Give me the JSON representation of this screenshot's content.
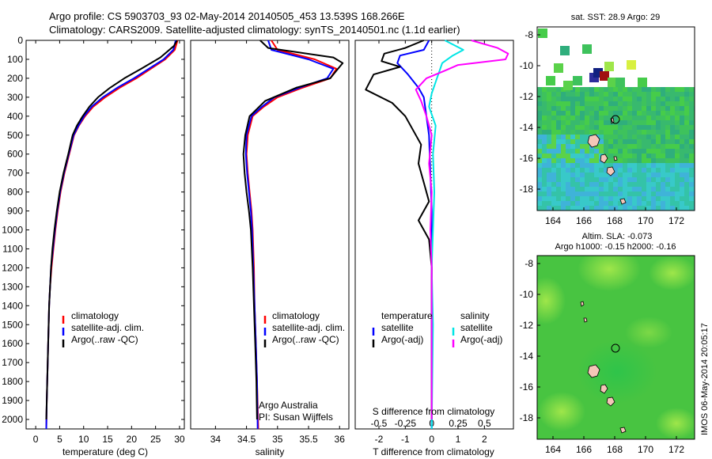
{
  "header": {
    "line1": "Argo profile: CS 5903703_93 02-May-2014 20140505_453 13.539S 168.266E",
    "line2": "Climatology: CARS2009. Satellite-adjusted climatology: synTS_20140501.nc (1.1d earlier)"
  },
  "colors": {
    "red": "#ff0000",
    "blue": "#0000ff",
    "black": "#000000",
    "cyan": "#00e5e5",
    "magenta": "#ff00ff"
  },
  "chart_data": [
    {
      "type": "line",
      "id": "temperature",
      "xlabel": "temperature (deg C)",
      "ylabel": "",
      "xlim": [
        -2,
        31
      ],
      "ylim": [
        2050,
        0
      ],
      "xticks": [
        0,
        5,
        10,
        15,
        20,
        25,
        30
      ],
      "yticks": [
        0,
        100,
        200,
        300,
        400,
        500,
        600,
        700,
        800,
        900,
        1000,
        1100,
        1200,
        1300,
        1400,
        1500,
        1600,
        1700,
        1800,
        1900,
        2000
      ],
      "legend": [
        "climatology",
        "satellite-adj. clim.",
        "Argo(..raw -QC)"
      ],
      "series": [
        {
          "name": "climatology",
          "color": "red",
          "points": [
            [
              29.6,
              0
            ],
            [
              29.0,
              50
            ],
            [
              27.0,
              100
            ],
            [
              24.0,
              150
            ],
            [
              21.0,
              200
            ],
            [
              17.5,
              250
            ],
            [
              14.5,
              300
            ],
            [
              12.0,
              350
            ],
            [
              10.3,
              400
            ],
            [
              9.0,
              450
            ],
            [
              8.0,
              500
            ],
            [
              7.0,
              600
            ],
            [
              6.0,
              700
            ],
            [
              5.2,
              800
            ],
            [
              4.6,
              900
            ],
            [
              4.1,
              1000
            ],
            [
              3.7,
              1100
            ],
            [
              3.3,
              1200
            ],
            [
              3.0,
              1300
            ],
            [
              2.8,
              1400
            ],
            [
              2.7,
              1500
            ],
            [
              2.6,
              1600
            ],
            [
              2.5,
              1700
            ],
            [
              2.4,
              1800
            ],
            [
              2.3,
              1900
            ],
            [
              2.2,
              2050
            ]
          ]
        },
        {
          "name": "satellite-adj. clim.",
          "color": "blue",
          "points": [
            [
              29.2,
              0
            ],
            [
              28.7,
              50
            ],
            [
              26.7,
              100
            ],
            [
              23.6,
              150
            ],
            [
              20.5,
              200
            ],
            [
              17.0,
              250
            ],
            [
              14.0,
              300
            ],
            [
              11.7,
              350
            ],
            [
              10.1,
              400
            ],
            [
              8.9,
              450
            ],
            [
              7.9,
              500
            ],
            [
              6.9,
              600
            ],
            [
              5.9,
              700
            ],
            [
              5.1,
              800
            ],
            [
              4.5,
              900
            ],
            [
              4.0,
              1000
            ],
            [
              3.6,
              1100
            ],
            [
              3.2,
              1200
            ],
            [
              3.0,
              1300
            ],
            [
              2.8,
              1400
            ],
            [
              2.7,
              1500
            ],
            [
              2.6,
              1600
            ],
            [
              2.5,
              1700
            ],
            [
              2.4,
              1800
            ],
            [
              2.3,
              1900
            ],
            [
              2.2,
              2050
            ]
          ]
        },
        {
          "name": "Argo(..raw -QC)",
          "color": "black",
          "points": [
            [
              29.5,
              0
            ],
            [
              28.8,
              30
            ],
            [
              26.0,
              90
            ],
            [
              22.0,
              150
            ],
            [
              18.5,
              200
            ],
            [
              15.5,
              250
            ],
            [
              13.0,
              300
            ],
            [
              11.2,
              350
            ],
            [
              9.8,
              400
            ],
            [
              8.6,
              450
            ],
            [
              7.7,
              500
            ],
            [
              6.8,
              600
            ],
            [
              5.8,
              700
            ],
            [
              5.0,
              800
            ],
            [
              4.4,
              900
            ],
            [
              3.9,
              1000
            ],
            [
              3.5,
              1100
            ],
            [
              3.2,
              1200
            ],
            [
              3.0,
              1300
            ],
            [
              2.8,
              1400
            ],
            [
              2.7,
              1500
            ],
            [
              2.6,
              1600
            ],
            [
              2.5,
              1700
            ],
            [
              2.4,
              1800
            ],
            [
              2.3,
              1900
            ],
            [
              2.2,
              2000
            ]
          ]
        }
      ]
    },
    {
      "type": "line",
      "id": "salinity",
      "xlabel": "salinity",
      "ylabel": "",
      "xlim": [
        33.6,
        36.15
      ],
      "ylim": [
        2050,
        0
      ],
      "xticks": [
        34,
        34.5,
        35,
        35.5,
        36
      ],
      "legend": [
        "climatology",
        "satellite-adj. clim.",
        "Argo(..raw -QC)"
      ],
      "annotation": {
        "line1": "Argo Australia",
        "line2": "PI: Susan Wijffels"
      },
      "series": [
        {
          "name": "climatology",
          "color": "red",
          "points": [
            [
              34.9,
              0
            ],
            [
              35.0,
              50
            ],
            [
              35.6,
              100
            ],
            [
              35.95,
              150
            ],
            [
              35.85,
              200
            ],
            [
              35.4,
              250
            ],
            [
              35.0,
              300
            ],
            [
              34.78,
              350
            ],
            [
              34.6,
              400
            ],
            [
              34.52,
              500
            ],
            [
              34.5,
              600
            ],
            [
              34.52,
              700
            ],
            [
              34.55,
              800
            ],
            [
              34.58,
              900
            ],
            [
              34.6,
              1000
            ],
            [
              34.62,
              1200
            ],
            [
              34.63,
              1400
            ],
            [
              34.65,
              1600
            ],
            [
              34.67,
              1800
            ],
            [
              34.69,
              2050
            ]
          ]
        },
        {
          "name": "satellite-adj. clim.",
          "color": "blue",
          "points": [
            [
              34.85,
              0
            ],
            [
              34.9,
              50
            ],
            [
              35.5,
              100
            ],
            [
              35.9,
              150
            ],
            [
              35.8,
              200
            ],
            [
              35.35,
              250
            ],
            [
              34.95,
              300
            ],
            [
              34.75,
              350
            ],
            [
              34.58,
              400
            ],
            [
              34.5,
              500
            ],
            [
              34.49,
              600
            ],
            [
              34.51,
              700
            ],
            [
              34.54,
              800
            ],
            [
              34.57,
              900
            ],
            [
              34.59,
              1000
            ],
            [
              34.61,
              1200
            ],
            [
              34.63,
              1400
            ],
            [
              34.65,
              1600
            ],
            [
              34.67,
              1800
            ],
            [
              34.68,
              2050
            ]
          ]
        },
        {
          "name": "Argo(..raw -QC)",
          "color": "black",
          "points": [
            [
              34.72,
              0
            ],
            [
              34.85,
              40
            ],
            [
              35.9,
              90
            ],
            [
              36.05,
              120
            ],
            [
              35.95,
              160
            ],
            [
              35.85,
              200
            ],
            [
              35.3,
              250
            ],
            [
              34.8,
              320
            ],
            [
              34.55,
              400
            ],
            [
              34.48,
              500
            ],
            [
              34.45,
              600
            ],
            [
              34.47,
              700
            ],
            [
              34.5,
              800
            ],
            [
              34.54,
              900
            ],
            [
              34.57,
              1000
            ],
            [
              34.6,
              1200
            ],
            [
              34.62,
              1400
            ],
            [
              34.64,
              1600
            ],
            [
              34.66,
              1800
            ],
            [
              34.67,
              2000
            ]
          ]
        }
      ]
    },
    {
      "type": "line",
      "id": "difference",
      "xlabel": "T difference from climatology",
      "xlabel_top": "S difference from climatology",
      "xlim": [
        -2.9,
        3.1
      ],
      "ylim": [
        2050,
        0
      ],
      "xticks": [
        -2,
        -1,
        0,
        1,
        2
      ],
      "s_ticks": [
        {
          "label": "-0.5",
          "at": -2
        },
        {
          "label": "-0.25",
          "at": -1
        },
        {
          "label": "0",
          "at": 0
        },
        {
          "label": "0.25",
          "at": 1
        },
        {
          "label": "0.5",
          "at": 2
        }
      ],
      "legend_left_title": "temperature",
      "legend_right_title": "salinity",
      "legend_left": [
        "satellite",
        "Argo(-adj)"
      ],
      "legend_right": [
        "satellite",
        "Argo(-adj)"
      ],
      "series": [
        {
          "name": "temperature satellite",
          "color": "blue",
          "points": [
            [
              -0.1,
              0
            ],
            [
              -0.3,
              50
            ],
            [
              -1.2,
              80
            ],
            [
              -1.3,
              120
            ],
            [
              -0.9,
              180
            ],
            [
              -0.5,
              250
            ],
            [
              -0.3,
              300
            ],
            [
              -0.2,
              400
            ],
            [
              -0.1,
              500
            ],
            [
              -0.05,
              700
            ],
            [
              0,
              900
            ],
            [
              0,
              2050
            ]
          ]
        },
        {
          "name": "temperature Argo(-adj)",
          "color": "black",
          "points": [
            [
              -0.3,
              0
            ],
            [
              -1.0,
              40
            ],
            [
              -1.8,
              70
            ],
            [
              -1.9,
              110
            ],
            [
              -1.2,
              140
            ],
            [
              -2.2,
              180
            ],
            [
              -2.5,
              260
            ],
            [
              -1.5,
              330
            ],
            [
              -1.0,
              400
            ],
            [
              -0.8,
              450
            ],
            [
              -0.6,
              500
            ],
            [
              -0.4,
              550
            ],
            [
              -0.5,
              650
            ],
            [
              -0.3,
              750
            ],
            [
              -0.1,
              850
            ],
            [
              -0.5,
              950
            ],
            [
              -0.1,
              1050
            ],
            [
              0,
              1200
            ],
            [
              0,
              1500
            ],
            [
              0,
              2000
            ]
          ]
        },
        {
          "name": "salinity satellite",
          "color": "cyan",
          "points": [
            [
              0.5,
              0
            ],
            [
              1.2,
              50
            ],
            [
              0.8,
              80
            ],
            [
              0.4,
              120
            ],
            [
              0.2,
              200
            ],
            [
              0.0,
              280
            ],
            [
              -0.1,
              350
            ],
            [
              0.15,
              450
            ],
            [
              0.05,
              600
            ],
            [
              0.1,
              800
            ],
            [
              0.05,
              1000
            ],
            [
              0,
              1200
            ],
            [
              0.05,
              1500
            ],
            [
              0,
              2050
            ]
          ]
        },
        {
          "name": "salinity Argo(-adj)",
          "color": "magenta",
          "points": [
            [
              1.5,
              0
            ],
            [
              2.5,
              40
            ],
            [
              2.9,
              70
            ],
            [
              2.8,
              100
            ],
            [
              1.0,
              130
            ],
            [
              0.5,
              160
            ],
            [
              -0.2,
              200
            ],
            [
              -0.6,
              260
            ],
            [
              -0.4,
              320
            ],
            [
              -0.2,
              400
            ],
            [
              0,
              500
            ],
            [
              -0.1,
              650
            ],
            [
              0,
              800
            ],
            [
              -0.05,
              1000
            ],
            [
              0,
              1200
            ],
            [
              0,
              1500
            ],
            [
              0,
              2000
            ]
          ]
        }
      ]
    }
  ],
  "maps": {
    "sst": {
      "title": "sat. SST: 28.9  Argo: 29",
      "xticks": [
        "164",
        "166",
        "168",
        "170",
        "172"
      ],
      "yticks": [
        "-8",
        "-10",
        "-12",
        "-14",
        "-16",
        "-18"
      ]
    },
    "sla": {
      "title1": "Altim. SLA: -0.073",
      "title2": "Argo h1000: -0.15  h2000: -0.16",
      "xticks": [
        "164",
        "166",
        "168",
        "170",
        "172"
      ],
      "yticks": [
        "-8",
        "-10",
        "-12",
        "-14",
        "-16",
        "-18"
      ]
    },
    "footer": "IMOS 06-May-2014 20:05:17"
  }
}
